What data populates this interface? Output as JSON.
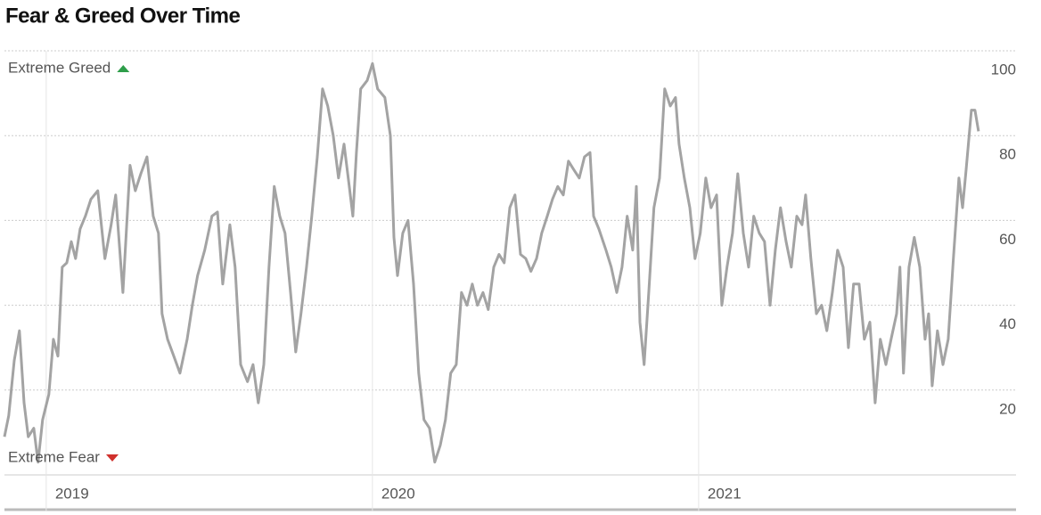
{
  "chart_data": {
    "type": "line",
    "title": "Fear & Greed Over Time",
    "x": [
      2018.872,
      2018.885,
      2018.902,
      2018.918,
      2018.932,
      2018.945,
      2018.962,
      2018.975,
      2018.989,
      2019.008,
      2019.022,
      2019.036,
      2019.049,
      2019.063,
      2019.077,
      2019.09,
      2019.104,
      2019.12,
      2019.137,
      2019.158,
      2019.18,
      2019.199,
      2019.213,
      2019.235,
      2019.257,
      2019.273,
      2019.29,
      2019.309,
      2019.328,
      2019.344,
      2019.355,
      2019.372,
      2019.391,
      2019.41,
      2019.432,
      2019.448,
      2019.464,
      2019.486,
      2019.508,
      2019.525,
      2019.541,
      2019.563,
      2019.579,
      2019.596,
      2019.617,
      2019.634,
      2019.65,
      2019.667,
      2019.683,
      2019.699,
      2019.716,
      2019.732,
      2019.749,
      2019.765,
      2019.781,
      2019.798,
      2019.814,
      2019.831,
      2019.847,
      2019.863,
      2019.88,
      2019.896,
      2019.913,
      2019.929,
      2019.94,
      2019.951,
      2019.964,
      2019.984,
      2020.0,
      2020.016,
      2020.038,
      2020.055,
      2020.066,
      2020.077,
      2020.093,
      2020.109,
      2020.126,
      2020.142,
      2020.158,
      2020.175,
      2020.191,
      2020.208,
      2020.224,
      2020.24,
      2020.257,
      2020.273,
      2020.29,
      2020.306,
      2020.322,
      2020.339,
      2020.355,
      2020.372,
      2020.388,
      2020.404,
      2020.421,
      2020.437,
      2020.454,
      2020.47,
      2020.486,
      2020.503,
      2020.519,
      2020.536,
      2020.552,
      2020.568,
      2020.585,
      2020.601,
      2020.617,
      2020.634,
      2020.65,
      2020.667,
      2020.678,
      2020.694,
      2020.716,
      2020.732,
      2020.749,
      2020.765,
      2020.781,
      2020.798,
      2020.809,
      2020.82,
      2020.833,
      2020.847,
      2020.863,
      2020.88,
      2020.896,
      2020.913,
      2020.929,
      2020.94,
      2020.956,
      2020.973,
      2020.989,
      2021.005,
      2021.022,
      2021.038,
      2021.055,
      2021.071,
      2021.087,
      2021.104,
      2021.12,
      2021.137,
      2021.153,
      2021.169,
      2021.186,
      2021.202,
      2021.219,
      2021.235,
      2021.251,
      2021.268,
      2021.284,
      2021.301,
      2021.317,
      2021.328,
      2021.344,
      2021.361,
      2021.377,
      2021.393,
      2021.41,
      2021.426,
      2021.443,
      2021.459,
      2021.475,
      2021.492,
      2021.508,
      2021.525,
      2021.541,
      2021.557,
      2021.574,
      2021.59,
      2021.607,
      2021.617,
      2021.628,
      2021.645,
      2021.661,
      2021.678,
      2021.694,
      2021.705,
      2021.716,
      2021.732,
      2021.749,
      2021.765,
      2021.781,
      2021.798,
      2021.809,
      2021.82,
      2021.836,
      2021.847,
      2021.858
    ],
    "series": [
      {
        "color": "#a3a3a3",
        "values": [
          9,
          14,
          27,
          34,
          17,
          9,
          11,
          3,
          13,
          19,
          32,
          28,
          49,
          50,
          55,
          51,
          58,
          61,
          65,
          67,
          51,
          59,
          66,
          43,
          73,
          67,
          71,
          75,
          61,
          57,
          38,
          32,
          28,
          24,
          32,
          40,
          47,
          53,
          61,
          62,
          45,
          59,
          49,
          26,
          22,
          26,
          17,
          26,
          49,
          68,
          61,
          57,
          43,
          29,
          38,
          49,
          61,
          75,
          91,
          87,
          80,
          70,
          78,
          68,
          61,
          76,
          91,
          93,
          97,
          91,
          89,
          80,
          56,
          47,
          57,
          60,
          45,
          24,
          13,
          11,
          3,
          7,
          13,
          24,
          26,
          43,
          40,
          45,
          40,
          43,
          39,
          49,
          52,
          50,
          63,
          66,
          52,
          51,
          48,
          51,
          57,
          61,
          65,
          68,
          66,
          74,
          72,
          70,
          75,
          76,
          61,
          58,
          53,
          49,
          43,
          49,
          61,
          53,
          68,
          36,
          26,
          43,
          63,
          70,
          91,
          87,
          89,
          78,
          70,
          63,
          51,
          57,
          70,
          63,
          66,
          40,
          49,
          57,
          71,
          57,
          49,
          61,
          57,
          55,
          40,
          53,
          63,
          55,
          49,
          61,
          59,
          66,
          51,
          38,
          40,
          34,
          43,
          53,
          49,
          30,
          45,
          45,
          32,
          36,
          17,
          32,
          26,
          32,
          38,
          49,
          24,
          49,
          56,
          49,
          32,
          38,
          21,
          34,
          26,
          32,
          51,
          70,
          63,
          72,
          86,
          86,
          81
        ]
      }
    ],
    "xlim": [
      2018.872,
      2021.973
    ],
    "xticks": [
      2019,
      2020,
      2021
    ],
    "ylim": [
      0,
      100
    ],
    "yticks": [
      20,
      40,
      60,
      80,
      100
    ],
    "grid": true,
    "annotations": [
      {
        "text": "Extreme Greed",
        "color": "#2e9e4a"
      },
      {
        "text": "Extreme Fear",
        "color": "#d0312d"
      }
    ]
  }
}
